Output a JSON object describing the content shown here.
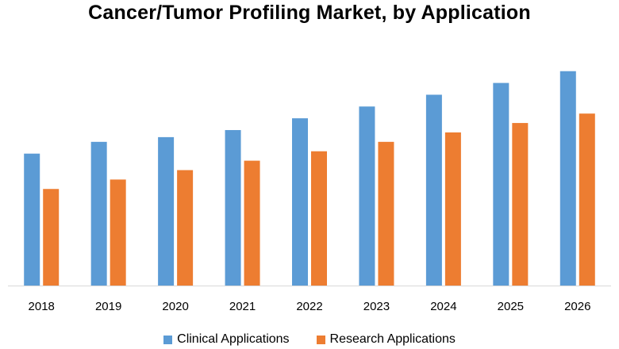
{
  "chart_data": {
    "type": "bar",
    "title": "Cancer/Tumor Profiling Market, by Application",
    "xlabel": "",
    "ylabel": "",
    "categories": [
      "2018",
      "2019",
      "2020",
      "2021",
      "2022",
      "2023",
      "2024",
      "2025",
      "2026"
    ],
    "series": [
      {
        "name": "Clinical Applications",
        "color": "#5B9BD5",
        "values": [
          56,
          61,
          63,
          66,
          71,
          76,
          81,
          86,
          91
        ]
      },
      {
        "name": "Research Applications",
        "color": "#ED7D31",
        "values": [
          41,
          45,
          49,
          53,
          57,
          61,
          65,
          69,
          73
        ]
      }
    ],
    "ylim": [
      0,
      100
    ],
    "grid": false,
    "legend_position": "bottom"
  }
}
